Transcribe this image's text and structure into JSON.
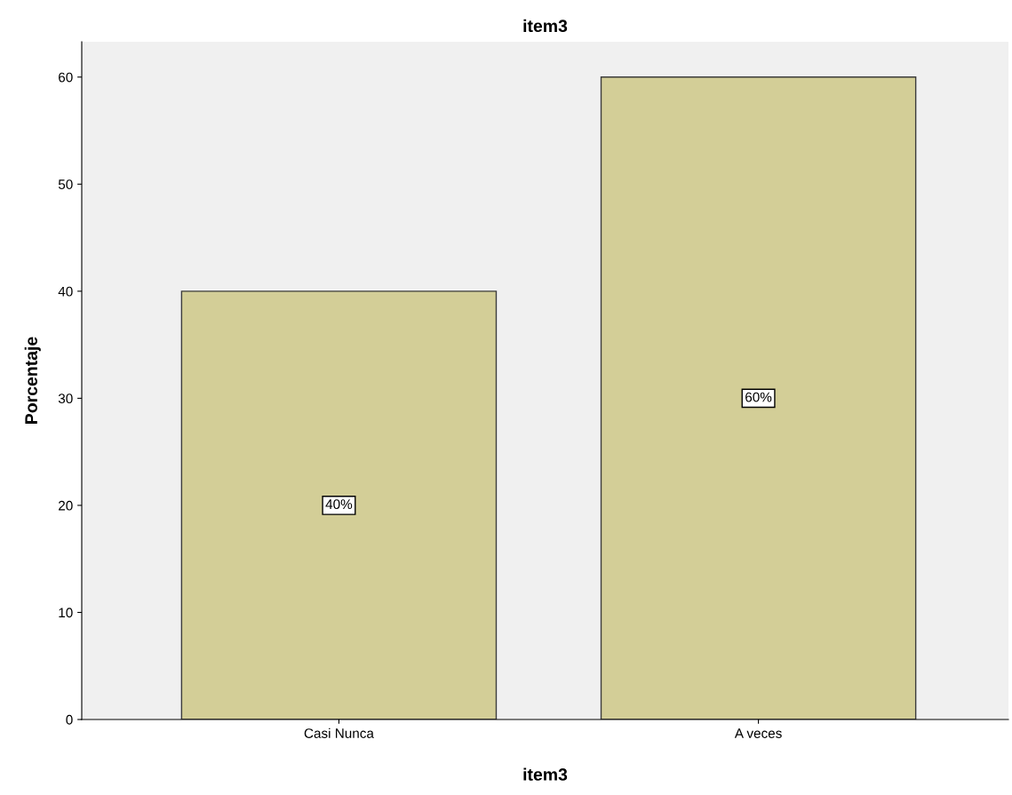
{
  "chart_data": {
    "type": "bar",
    "title": "item3",
    "xlabel": "item3",
    "ylabel": "Porcentaje",
    "categories": [
      "Casi Nunca",
      "A veces"
    ],
    "values": [
      40,
      60
    ],
    "value_labels": [
      "40%",
      "60%"
    ],
    "color": "#d3ce97",
    "ylim": [
      0,
      63.3
    ],
    "yticks": [
      0,
      10,
      20,
      30,
      40,
      50,
      60
    ],
    "grid": false,
    "legend": false
  }
}
